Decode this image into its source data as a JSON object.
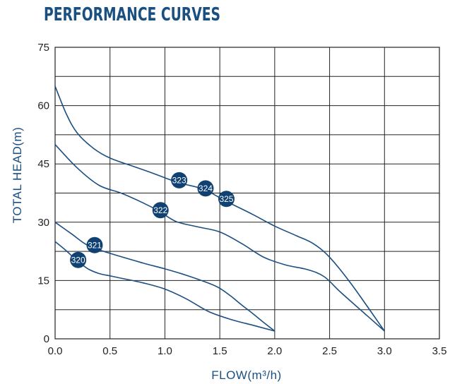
{
  "title": "PERFORMANCE CURVES",
  "colors": {
    "accent": "#1a4f82",
    "curve": "#1a4f82",
    "grid": "#222222",
    "badge": "#0f4172"
  },
  "chart_data": {
    "type": "line",
    "title": "PERFORMANCE CURVES",
    "xlabel": "FLOW(m³/h)",
    "ylabel": "TOTAL HEAD(m)",
    "xlim": [
      0,
      3.5
    ],
    "ylim": [
      0,
      75
    ],
    "xticks": [
      0.0,
      0.5,
      1.0,
      1.5,
      2.0,
      2.5,
      3.0,
      3.5
    ],
    "xtick_labels": [
      "0.0",
      "0.5",
      "1.0",
      "1.5",
      "2.0",
      "2.5",
      "3.0",
      "3.5"
    ],
    "yticks": [
      0,
      15,
      30,
      45,
      60,
      75
    ],
    "ytick_labels": [
      "0",
      "15",
      "30",
      "45",
      "60",
      "75"
    ],
    "grid": true,
    "series": [
      {
        "name": "320",
        "x": [
          0.0,
          0.1,
          0.2,
          0.3,
          0.4,
          0.5,
          0.6,
          0.8,
          1.0,
          1.2,
          1.4,
          1.6,
          1.8,
          2.0
        ],
        "y": [
          25,
          22.7,
          20.1,
          18,
          16.8,
          16.2,
          15.6,
          14.4,
          12.8,
          10.2,
          7,
          5,
          3.5,
          2
        ]
      },
      {
        "name": "321",
        "x": [
          0.0,
          0.15,
          0.3,
          0.5,
          0.8,
          1.0,
          1.2,
          1.4,
          1.5,
          1.6,
          1.7,
          1.8,
          1.9,
          2.0
        ],
        "y": [
          30,
          27,
          24,
          22,
          19.5,
          18,
          16.3,
          14.3,
          13,
          11,
          8.7,
          6.5,
          4.2,
          2
        ]
      },
      {
        "name": "322",
        "x": [
          0.0,
          0.2,
          0.4,
          0.6,
          0.8,
          0.95,
          1.1,
          1.3,
          1.5,
          1.7,
          1.9,
          2.1,
          2.3,
          2.45,
          2.6,
          2.8,
          3.0
        ],
        "y": [
          50,
          44,
          39.5,
          37.5,
          35,
          32.8,
          30.2,
          28.8,
          27.5,
          24.5,
          21,
          19,
          17.8,
          16,
          12,
          7,
          2
        ]
      },
      {
        "name": "323",
        "x": [
          0.0,
          0.1,
          0.2,
          0.35,
          0.5,
          0.7,
          0.9,
          1.12,
          1.35,
          1.55,
          1.8,
          2.0,
          2.2,
          2.35,
          2.5,
          2.7,
          3.0
        ],
        "y": [
          65,
          58,
          53,
          49,
          46.5,
          44.5,
          42.5,
          40.2,
          38.5,
          35.5,
          32,
          29,
          26.5,
          24.5,
          21,
          14,
          2
        ]
      }
    ],
    "annotations": [
      {
        "text": "320",
        "x": 0.21,
        "y": 20.3
      },
      {
        "text": "321",
        "x": 0.36,
        "y": 24.1
      },
      {
        "text": "322",
        "x": 0.96,
        "y": 33.1
      },
      {
        "text": "323",
        "x": 1.13,
        "y": 40.8
      },
      {
        "text": "324",
        "x": 1.37,
        "y": 38.7
      },
      {
        "text": "325",
        "x": 1.56,
        "y": 36.0
      }
    ]
  }
}
